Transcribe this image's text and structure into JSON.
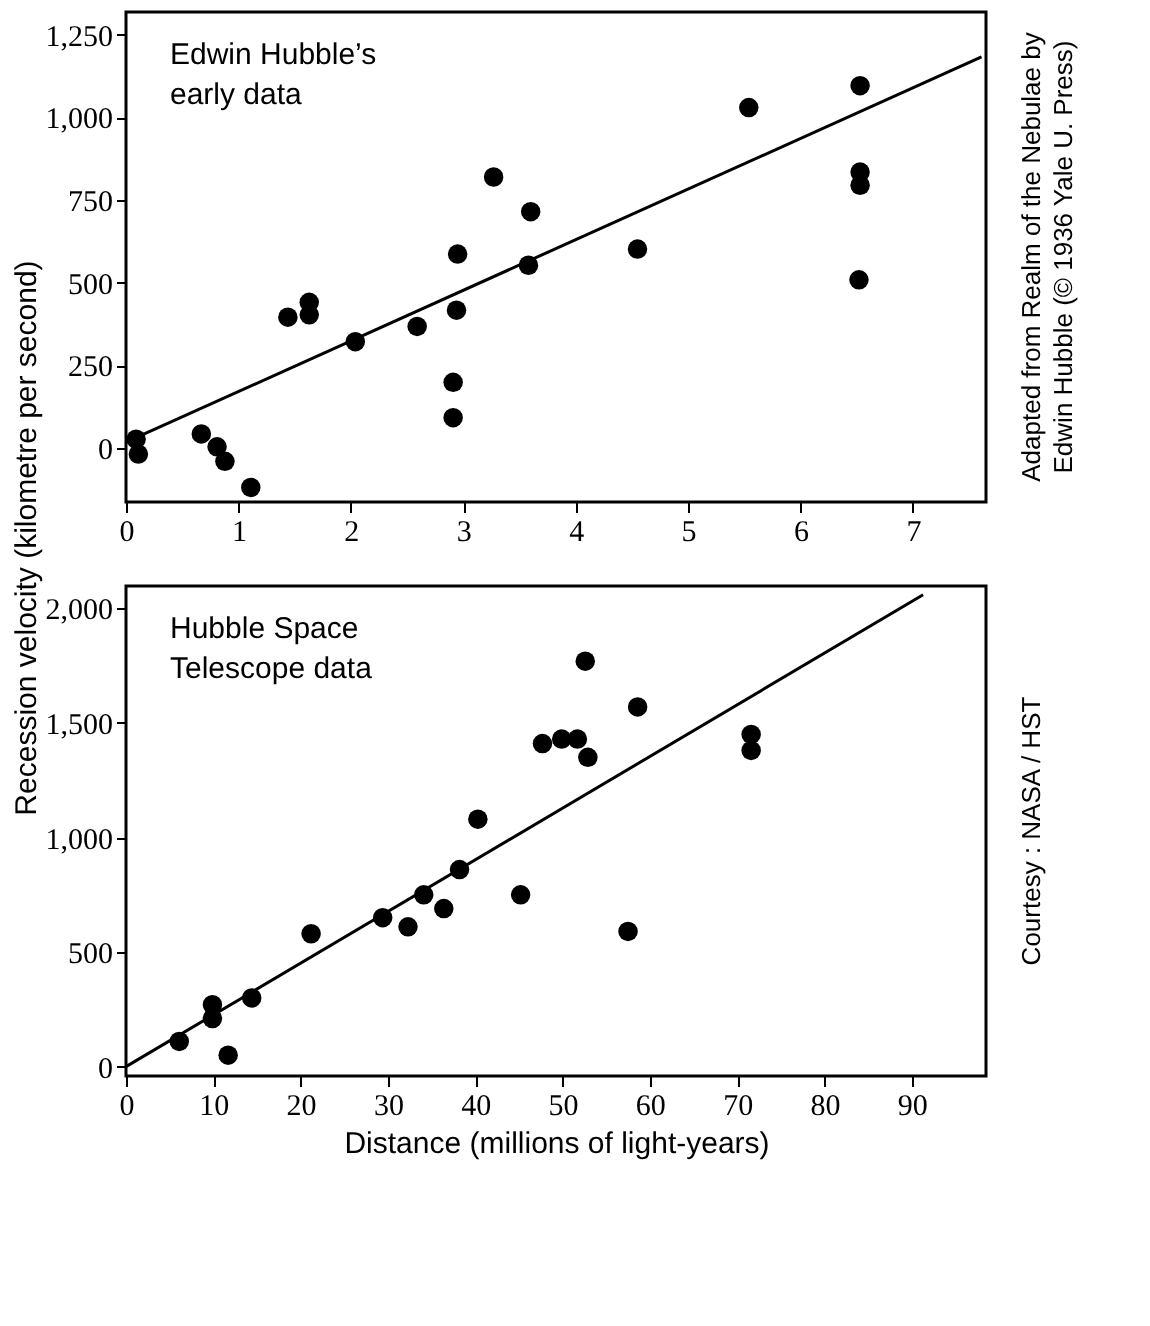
{
  "chart_data": [
    {
      "type": "scatter",
      "title": "Edwin Hubble’s early data",
      "ylabel": "Recession velocity (kilometre per second)",
      "grid": false,
      "annotations": [
        "Adapted from Realm of the Nebulae by Edwin Hubble (© 1936 Yale U. Press)"
      ],
      "xlim": [
        0,
        7.65
      ],
      "xticks": [
        0,
        1,
        2,
        3,
        4,
        5,
        6,
        7
      ],
      "ylim": [
        -163,
        1319
      ],
      "yticks": [
        0,
        250,
        500,
        750,
        {
          "value": 1000,
          "label": "1,000"
        },
        {
          "value": 1250,
          "label": "1,250"
        }
      ],
      "series": [
        {
          "marker": "circle",
          "color": "#000000",
          "x": [
            0.09,
            0.11,
            0.67,
            0.81,
            0.88,
            1.11,
            1.44,
            1.63,
            1.63,
            2.04,
            2.59,
            2.91,
            2.91,
            2.94,
            2.95,
            3.27,
            3.6,
            3.58,
            4.55,
            5.54,
            6.53,
            6.53,
            6.53,
            6.52
          ],
          "values": [
            27,
            -18,
            43,
            4,
            -40,
            -119,
            396,
            441,
            403,
            322,
            368,
            199,
            92,
            417,
            587,
            820,
            715,
            553,
            602,
            1030,
            1096,
            835,
            795,
            509
          ]
        },
        {
          "type": "line",
          "color": "#000000",
          "x": [
            0,
            7.61
          ],
          "values": [
            18,
            1183
          ]
        }
      ]
    },
    {
      "type": "scatter",
      "title": "Hubble Space Telescope data",
      "xlabel": "Distance (millions of light-years)",
      "grid": false,
      "annotations": [
        "Courtesy : NASA / HST"
      ],
      "xlim": [
        0,
        98.5
      ],
      "xticks": [
        0,
        10,
        20,
        30,
        40,
        50,
        60,
        70,
        80,
        90
      ],
      "ylim": [
        -41,
        2098
      ],
      "yticks": [
        0,
        500,
        {
          "value": 1000,
          "label": "1,000"
        },
        {
          "value": 1500,
          "label": "1,500"
        },
        {
          "value": 2000,
          "label": "2,000"
        }
      ],
      "series": [
        {
          "marker": "circle",
          "color": "#000000",
          "x": [
            6.1,
            9.9,
            9.9,
            11.7,
            14.4,
            21.2,
            29.4,
            32.3,
            34.1,
            36.4,
            38.2,
            40.3,
            45.2,
            47.7,
            49.9,
            51.7,
            52.9,
            52.6,
            57.5,
            58.6,
            71.6,
            71.6
          ],
          "values": [
            110,
            270,
            210,
            50,
            300,
            580,
            650,
            610,
            750,
            690,
            860,
            1080,
            750,
            1410,
            1430,
            1430,
            1350,
            1770,
            590,
            1570,
            1450,
            1380
          ]
        },
        {
          "type": "line",
          "color": "#000000",
          "x": [
            0,
            91.3
          ],
          "values": [
            0,
            2060
          ]
        }
      ]
    }
  ]
}
